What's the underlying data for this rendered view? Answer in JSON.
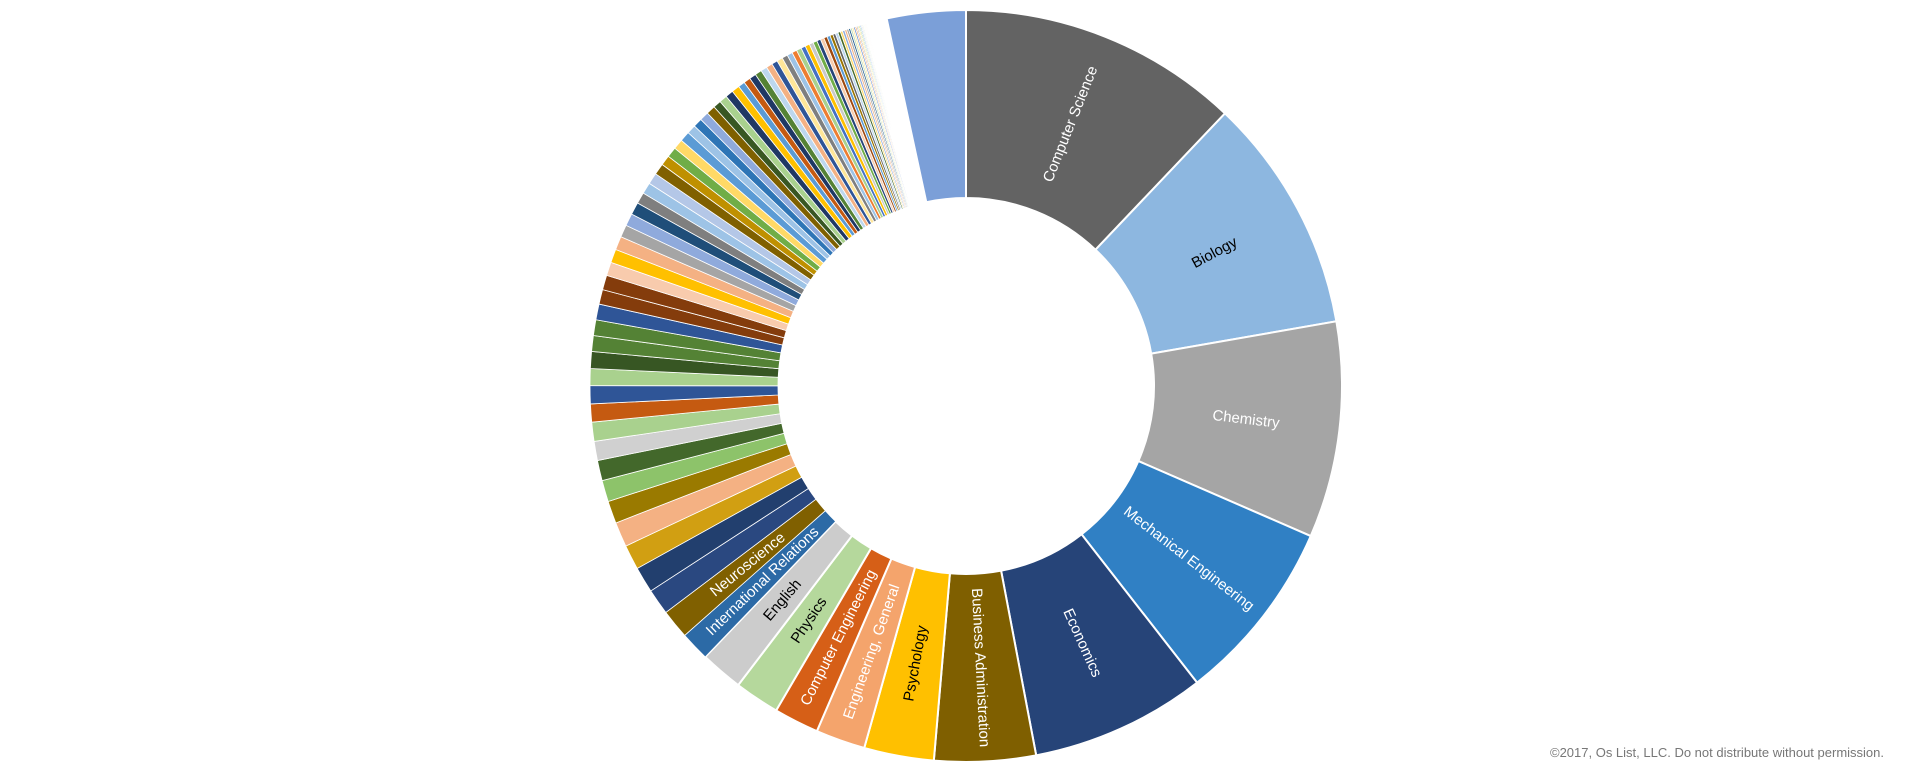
{
  "chart_data": {
    "type": "pie",
    "donut": true,
    "legend": "none",
    "segments": [
      {
        "label": "Computer Science",
        "value": 12.5,
        "color": "#636363",
        "label_color": "#ffffff"
      },
      {
        "label": "Biology",
        "value": 10.5,
        "color": "#8db7e0",
        "label_color": "#000000"
      },
      {
        "label": "Chemistry",
        "value": 9.6,
        "color": "#a5a5a5",
        "label_color": "#ffffff"
      },
      {
        "label": "Mechanical Engineering",
        "value": 8.2,
        "color": "#3080c4",
        "label_color": "#ffffff"
      },
      {
        "label": "Economics",
        "value": 7.8,
        "color": "#264478",
        "label_color": "#ffffff"
      },
      {
        "label": "Business Administration",
        "value": 4.5,
        "color": "#7f5f00",
        "label_color": "#ffffff"
      },
      {
        "label": "Psychology",
        "value": 3.1,
        "color": "#ffc000",
        "label_color": "#000000"
      },
      {
        "label": "Engineering, General",
        "value": 2.2,
        "color": "#f4a46c",
        "label_color": "#ffffff"
      },
      {
        "label": "Computer Engineering",
        "value": 2.0,
        "color": "#d65f17",
        "label_color": "#ffffff"
      },
      {
        "label": "Physics",
        "value": 2.0,
        "color": "#b5d89c",
        "label_color": "#000000"
      },
      {
        "label": "English",
        "value": 1.9,
        "color": "#cccccc",
        "label_color": "#000000"
      },
      {
        "label": "International Relations",
        "value": 1.3,
        "color": "#2c6aa6",
        "label_color": "#ffffff"
      },
      {
        "label": "Neuroscience",
        "value": 1.3,
        "color": "#806000",
        "label_color": "#ffffff"
      },
      {
        "label": "",
        "value": 1.15,
        "color": "#2a4880"
      },
      {
        "label": "",
        "value": 1.15,
        "color": "#223f6e"
      },
      {
        "label": "",
        "value": 1.1,
        "color": "#d19f12"
      },
      {
        "label": "",
        "value": 1.1,
        "color": "#f4b183"
      },
      {
        "label": "",
        "value": 1.0,
        "color": "#9a7a00"
      },
      {
        "label": "",
        "value": 0.95,
        "color": "#8dc36a"
      },
      {
        "label": "",
        "value": 0.9,
        "color": "#43682b"
      },
      {
        "label": "",
        "value": 0.85,
        "color": "#d0d0d0"
      },
      {
        "label": "",
        "value": 0.85,
        "color": "#a9d18e"
      },
      {
        "label": "",
        "value": 0.8,
        "color": "#c55a11"
      },
      {
        "label": "",
        "value": 0.8,
        "color": "#2f5597"
      },
      {
        "label": "",
        "value": 0.75,
        "color": "#a9d18e"
      },
      {
        "label": "",
        "value": 0.75,
        "color": "#375623"
      },
      {
        "label": "",
        "value": 0.7,
        "color": "#548235"
      },
      {
        "label": "",
        "value": 0.7,
        "color": "#548235"
      },
      {
        "label": "",
        "value": 0.7,
        "color": "#2f5597"
      },
      {
        "label": "",
        "value": 0.65,
        "color": "#843c0c"
      },
      {
        "label": "",
        "value": 0.65,
        "color": "#843c0c"
      },
      {
        "label": "",
        "value": 0.6,
        "color": "#f8cbad"
      },
      {
        "label": "",
        "value": 0.6,
        "color": "#ffc000"
      },
      {
        "label": "",
        "value": 0.6,
        "color": "#f4b183"
      },
      {
        "label": "",
        "value": 0.55,
        "color": "#a5a5a5"
      },
      {
        "label": "",
        "value": 0.55,
        "color": "#8faadc"
      },
      {
        "label": "",
        "value": 0.55,
        "color": "#1f4e79"
      },
      {
        "label": "",
        "value": 0.5,
        "color": "#7f7f7f"
      },
      {
        "label": "",
        "value": 0.5,
        "color": "#9dc3e6"
      },
      {
        "label": "",
        "value": 0.5,
        "color": "#b4c7e7"
      },
      {
        "label": "",
        "value": 0.5,
        "color": "#806000"
      },
      {
        "label": "",
        "value": 0.45,
        "color": "#bf9000"
      },
      {
        "label": "",
        "value": 0.45,
        "color": "#70ad47"
      },
      {
        "label": "",
        "value": 0.45,
        "color": "#ffd966"
      },
      {
        "label": "",
        "value": 0.45,
        "color": "#5b9bd5"
      },
      {
        "label": "",
        "value": 0.4,
        "color": "#9dc3e6"
      },
      {
        "label": "",
        "value": 0.4,
        "color": "#2e75b6"
      },
      {
        "label": "",
        "value": 0.4,
        "color": "#8faadc"
      },
      {
        "label": "",
        "value": 0.4,
        "color": "#7f6000"
      },
      {
        "label": "",
        "value": 0.35,
        "color": "#385723"
      },
      {
        "label": "",
        "value": 0.35,
        "color": "#a9d18e"
      },
      {
        "label": "",
        "value": 0.35,
        "color": "#203864"
      },
      {
        "label": "",
        "value": 0.35,
        "color": "#ffc000"
      },
      {
        "label": "",
        "value": 0.3,
        "color": "#5b9bd5"
      },
      {
        "label": "",
        "value": 0.3,
        "color": "#c55a11"
      },
      {
        "label": "",
        "value": 0.3,
        "color": "#1f3864"
      },
      {
        "label": "",
        "value": 0.3,
        "color": "#548235"
      },
      {
        "label": "",
        "value": 0.28,
        "color": "#bdd7ee"
      },
      {
        "label": "",
        "value": 0.28,
        "color": "#f4b183"
      },
      {
        "label": "",
        "value": 0.26,
        "color": "#2f5597"
      },
      {
        "label": "",
        "value": 0.26,
        "color": "#ffe699"
      },
      {
        "label": "",
        "value": 0.25,
        "color": "#7f7f7f"
      },
      {
        "label": "",
        "value": 0.24,
        "color": "#9dc3e6"
      },
      {
        "label": "",
        "value": 0.22,
        "color": "#ed7d31"
      },
      {
        "label": "",
        "value": 0.22,
        "color": "#a9d18e"
      },
      {
        "label": "",
        "value": 0.2,
        "color": "#4472c4"
      },
      {
        "label": "",
        "value": 0.2,
        "color": "#ffc000"
      },
      {
        "label": "",
        "value": 0.18,
        "color": "#c9c9c9"
      },
      {
        "label": "",
        "value": 0.18,
        "color": "#70ad47"
      },
      {
        "label": "",
        "value": 0.17,
        "color": "#264478"
      },
      {
        "label": "",
        "value": 0.16,
        "color": "#f8cbad"
      },
      {
        "label": "",
        "value": 0.15,
        "color": "#9e480e"
      },
      {
        "label": "",
        "value": 0.14,
        "color": "#5b9bd5"
      },
      {
        "label": "",
        "value": 0.13,
        "color": "#997300"
      },
      {
        "label": "",
        "value": 0.12,
        "color": "#636363"
      },
      {
        "label": "",
        "value": 0.12,
        "color": "#bdd7ee"
      },
      {
        "label": "",
        "value": 0.11,
        "color": "#43682b"
      },
      {
        "label": "",
        "value": 0.1,
        "color": "#ffd966"
      },
      {
        "label": "",
        "value": 0.1,
        "color": "#8faadc"
      },
      {
        "label": "",
        "value": 0.09,
        "color": "#f4b183"
      },
      {
        "label": "",
        "value": 0.09,
        "color": "#a5a5a5"
      },
      {
        "label": "",
        "value": 0.08,
        "color": "#255e91"
      },
      {
        "label": "",
        "value": 0.08,
        "color": "#c5e0b4"
      },
      {
        "label": "",
        "value": 0.07,
        "color": "#ffe699"
      },
      {
        "label": "",
        "value": 0.07,
        "color": "#698ed0"
      },
      {
        "label": "",
        "value": 0.06,
        "color": "#f1975a"
      },
      {
        "label": "",
        "value": 0.06,
        "color": "#b7b7b7"
      },
      {
        "label": "",
        "value": 0.05,
        "color": "#ffcd33"
      },
      {
        "label": "",
        "value": 0.05,
        "color": "#8cc168"
      },
      {
        "label": "",
        "value": 0.05,
        "color": "#5b9bd5"
      },
      {
        "label": "",
        "value": 0.05,
        "color": "#d9d9d9"
      },
      {
        "label": "",
        "value": 0.05,
        "color": "#e2efda"
      },
      {
        "label": "",
        "value": 0.04,
        "color": "#ddebf7"
      },
      {
        "label": "",
        "value": 0.04,
        "color": "#fff2cc"
      },
      {
        "label": "",
        "value": 0.04,
        "color": "#fce4d6"
      },
      {
        "label": "",
        "value": 0.04,
        "color": "#ededed"
      },
      {
        "label": "",
        "value": 0.9,
        "color": "#ffffff"
      },
      {
        "label": "",
        "value": 3.5,
        "color": "#7b9fd8"
      }
    ]
  },
  "footer": {
    "copyright": "©2017, Os List, LLC. Do not distribute without permission."
  }
}
